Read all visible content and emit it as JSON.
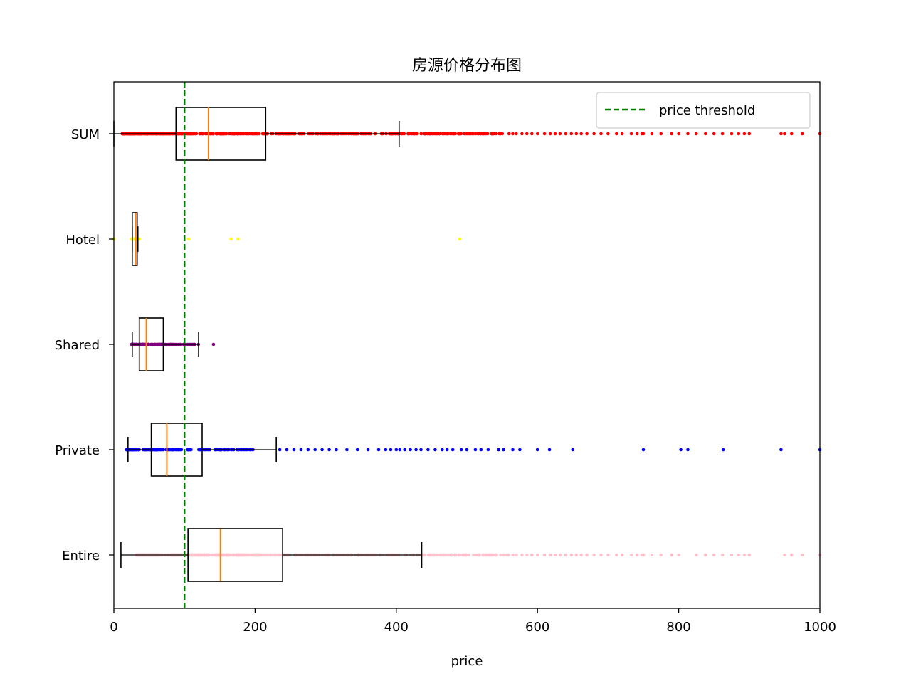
{
  "chart_data": {
    "type": "box",
    "orientation": "horizontal",
    "title": "房源价格分布图",
    "xlabel": "price",
    "ylabel": "",
    "xlim": [
      0,
      1000
    ],
    "xticks": [
      0,
      200,
      400,
      600,
      800,
      1000
    ],
    "grid": false,
    "threshold": {
      "label": "price threshold",
      "value": 100,
      "color": "#008000",
      "style": "dashed"
    },
    "legend": {
      "placement": "top-right",
      "entries": [
        "price threshold"
      ]
    },
    "series": [
      {
        "category": "Entire",
        "whisker_low": 10,
        "q1": 105,
        "median": 151,
        "q3": 239,
        "whisker_high": 436,
        "point_color": "#ffc0cb",
        "dense_range": [
          32,
          560
        ],
        "outliers": [
          565,
          570,
          578,
          585,
          592,
          600,
          610,
          618,
          625,
          632,
          640,
          648,
          655,
          662,
          670,
          680,
          690,
          700,
          712,
          720,
          733,
          741,
          748,
          750,
          762,
          775,
          790,
          800,
          825,
          838,
          850,
          862,
          875,
          885,
          893,
          900,
          950,
          960,
          975,
          1000
        ]
      },
      {
        "category": "Private",
        "whisker_low": 20,
        "q1": 53,
        "median": 75,
        "q3": 125,
        "whisker_high": 230,
        "point_color": "#0000ff",
        "dense_range": [
          18,
          200
        ],
        "outliers": [
          235,
          245,
          255,
          265,
          275,
          285,
          295,
          305,
          315,
          330,
          345,
          360,
          375,
          385,
          392,
          400,
          405,
          412,
          420,
          428,
          435,
          445,
          455,
          465,
          472,
          480,
          492,
          500,
          512,
          520,
          530,
          545,
          552,
          565,
          575,
          600,
          617,
          650,
          750,
          803,
          813,
          863,
          945,
          1000
        ]
      },
      {
        "category": "Shared",
        "whisker_low": 26,
        "q1": 36,
        "median": 46,
        "q3": 70,
        "whisker_high": 120,
        "point_color": "#800080",
        "dense_range": [
          25,
          120
        ],
        "outliers": [
          141
        ]
      },
      {
        "category": "Hotel",
        "whisker_low": 26,
        "q1": 26,
        "median": 31,
        "q3": 33,
        "whisker_high": 34,
        "point_color": "#ffff00",
        "dense_range": [
          25,
          36
        ],
        "outliers": [
          0,
          106,
          166,
          176,
          490
        ]
      },
      {
        "category": "SUM",
        "whisker_low": 0,
        "q1": 88,
        "median": 134,
        "q3": 215,
        "whisker_high": 404,
        "point_color": "#ff0000",
        "dense_range": [
          12,
          560
        ],
        "outliers": [
          565,
          570,
          578,
          585,
          592,
          600,
          610,
          618,
          625,
          632,
          640,
          648,
          655,
          662,
          670,
          680,
          690,
          700,
          712,
          720,
          733,
          741,
          748,
          750,
          762,
          775,
          790,
          800,
          813,
          825,
          838,
          850,
          862,
          875,
          885,
          893,
          900,
          945,
          950,
          960,
          975,
          1000
        ]
      }
    ]
  }
}
